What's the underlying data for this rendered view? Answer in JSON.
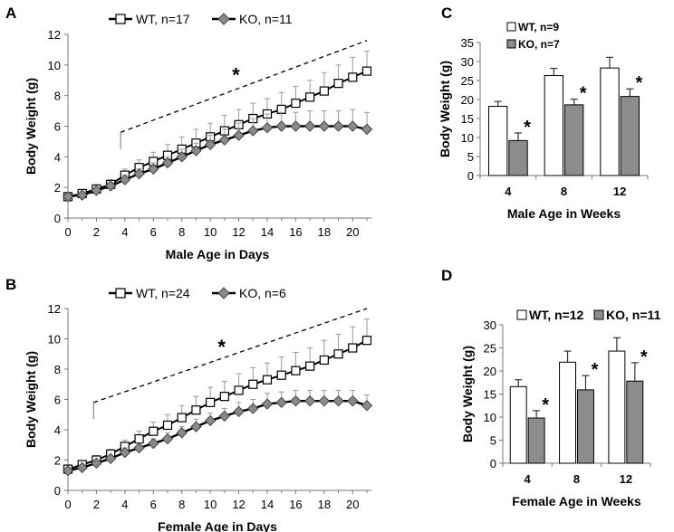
{
  "panels": [
    {
      "letter": "A",
      "type": "line",
      "xlabel": "Male Age in Days",
      "ylabel": "Body Weight (g)",
      "xlim": [
        0,
        21
      ],
      "ylim": [
        0,
        12
      ],
      "xticks": [
        0,
        2,
        4,
        6,
        8,
        10,
        12,
        14,
        16,
        18,
        20
      ],
      "yticks": [
        0,
        2,
        4,
        6,
        8,
        10,
        12
      ],
      "legend": [
        "WT, n=17",
        "KO, n=11"
      ],
      "star": "*",
      "bracket": {
        "x0": 3.7,
        "y0": 5.6,
        "x1": 21,
        "y1": 11.6
      },
      "star_pos": {
        "x": 11.8,
        "y": 9.5
      },
      "series": [
        {
          "name": "WT, n=17",
          "marker": "square",
          "x": [
            0,
            1,
            2,
            3,
            4,
            5,
            6,
            7,
            8,
            9,
            10,
            11,
            12,
            13,
            14,
            15,
            16,
            17,
            18,
            19,
            20,
            21
          ],
          "values": [
            1.4,
            1.6,
            1.9,
            2.2,
            2.8,
            3.3,
            3.7,
            4.1,
            4.5,
            4.9,
            5.3,
            5.7,
            6.1,
            6.5,
            6.8,
            7.1,
            7.5,
            7.9,
            8.3,
            8.8,
            9.2,
            9.6
          ],
          "errors": [
            0.2,
            0.2,
            0.2,
            0.3,
            0.4,
            0.5,
            0.6,
            0.7,
            0.8,
            0.9,
            0.9,
            1.0,
            1.0,
            1.0,
            1.0,
            1.1,
            1.1,
            1.1,
            1.2,
            1.2,
            1.3,
            1.3
          ]
        },
        {
          "name": "KO, n=11",
          "marker": "diamond",
          "x": [
            0,
            1,
            2,
            3,
            4,
            5,
            6,
            7,
            8,
            9,
            10,
            11,
            12,
            13,
            14,
            15,
            16,
            17,
            18,
            19,
            20,
            21
          ],
          "values": [
            1.4,
            1.5,
            1.8,
            2.1,
            2.5,
            2.9,
            3.2,
            3.6,
            4.0,
            4.4,
            4.8,
            5.1,
            5.4,
            5.7,
            5.9,
            6.0,
            6.0,
            6.0,
            6.0,
            6.0,
            6.0,
            5.8
          ],
          "errors": [
            0.2,
            0.2,
            0.2,
            0.2,
            0.3,
            0.3,
            0.4,
            0.4,
            0.5,
            0.5,
            0.6,
            0.7,
            0.8,
            0.8,
            0.9,
            0.9,
            0.9,
            1.0,
            1.0,
            1.0,
            1.1,
            1.1
          ]
        }
      ]
    },
    {
      "letter": "B",
      "type": "line",
      "xlabel": "Female Age in Days",
      "ylabel": "Body Weight (g)",
      "xlim": [
        0,
        21
      ],
      "ylim": [
        0,
        12
      ],
      "xticks": [
        0,
        2,
        4,
        6,
        8,
        10,
        12,
        14,
        16,
        18,
        20
      ],
      "yticks": [
        0,
        2,
        4,
        6,
        8,
        10,
        12
      ],
      "legend": [
        "WT, n=24",
        "KO, n=6"
      ],
      "star": "*",
      "bracket": {
        "x0": 1.8,
        "y0": 5.8,
        "x1": 21,
        "y1": 12.0
      },
      "star_pos": {
        "x": 10.8,
        "y": 9.6
      },
      "series": [
        {
          "name": "WT, n=24",
          "marker": "square",
          "x": [
            0,
            1,
            2,
            3,
            4,
            5,
            6,
            7,
            8,
            9,
            10,
            11,
            12,
            13,
            14,
            15,
            16,
            17,
            18,
            19,
            20,
            21
          ],
          "values": [
            1.4,
            1.7,
            2.0,
            2.4,
            2.9,
            3.4,
            3.9,
            4.3,
            4.8,
            5.3,
            5.8,
            6.2,
            6.6,
            7.0,
            7.3,
            7.6,
            7.9,
            8.2,
            8.6,
            9.0,
            9.4,
            9.9
          ],
          "errors": [
            0.2,
            0.2,
            0.3,
            0.3,
            0.4,
            0.5,
            0.6,
            0.7,
            0.8,
            0.9,
            1.0,
            1.0,
            1.1,
            1.1,
            1.1,
            1.2,
            1.2,
            1.2,
            1.3,
            1.3,
            1.4,
            1.4
          ]
        },
        {
          "name": "KO, n=6",
          "marker": "diamond",
          "x": [
            0,
            1,
            2,
            3,
            4,
            5,
            6,
            7,
            8,
            9,
            10,
            11,
            12,
            13,
            14,
            15,
            16,
            17,
            18,
            19,
            20,
            21
          ],
          "values": [
            1.3,
            1.5,
            1.8,
            2.1,
            2.5,
            2.8,
            3.1,
            3.4,
            3.8,
            4.2,
            4.6,
            4.9,
            5.2,
            5.4,
            5.7,
            5.8,
            5.9,
            5.9,
            5.9,
            5.9,
            5.9,
            5.6
          ],
          "errors": [
            0.2,
            0.2,
            0.2,
            0.2,
            0.3,
            0.3,
            0.3,
            0.4,
            0.4,
            0.5,
            0.5,
            0.5,
            0.6,
            0.6,
            0.7,
            0.7,
            0.7,
            0.7,
            0.7,
            0.7,
            0.7,
            0.7
          ]
        }
      ]
    },
    {
      "letter": "C",
      "type": "bar",
      "xlabel": "Male Age in Weeks",
      "ylabel": "Body Weight (g)",
      "categories": [
        "4",
        "8",
        "12"
      ],
      "ylim": [
        0,
        35
      ],
      "yticks": [
        0,
        5,
        10,
        15,
        20,
        25,
        30,
        35
      ],
      "legend": [
        "WT, n=9",
        "KO, n=7"
      ],
      "legend_layout": "stacked",
      "star": "*",
      "series": [
        {
          "name": "WT, n=9",
          "values": [
            18.2,
            26.3,
            28.3
          ],
          "errors": [
            1.3,
            1.9,
            2.8
          ]
        },
        {
          "name": "KO, n=7",
          "values": [
            9.2,
            18.6,
            20.8
          ],
          "errors": [
            2.0,
            1.5,
            2.0
          ]
        }
      ]
    },
    {
      "letter": "D",
      "type": "bar",
      "xlabel": "Female Age in Weeks",
      "ylabel": "Body Weight (g)",
      "categories": [
        "4",
        "8",
        "12"
      ],
      "ylim": [
        0,
        30
      ],
      "yticks": [
        0,
        5,
        10,
        15,
        20,
        25,
        30
      ],
      "legend": [
        "WT, n=12",
        "KO, n=11"
      ],
      "legend_layout": "inline",
      "star": "*",
      "series": [
        {
          "name": "WT, n=12",
          "values": [
            16.6,
            21.9,
            24.3
          ],
          "errors": [
            1.5,
            2.4,
            2.9
          ]
        },
        {
          "name": "KO, n=11",
          "values": [
            9.8,
            15.9,
            17.8
          ],
          "errors": [
            1.6,
            3.1,
            4.0
          ]
        }
      ]
    }
  ],
  "chart_data": [
    {
      "type": "line",
      "title": "A",
      "xlabel": "Male Age in Days",
      "ylabel": "Body Weight (g)",
      "ylim": [
        0,
        12
      ],
      "x": [
        0,
        1,
        2,
        3,
        4,
        5,
        6,
        7,
        8,
        9,
        10,
        11,
        12,
        13,
        14,
        15,
        16,
        17,
        18,
        19,
        20,
        21
      ],
      "series": [
        {
          "name": "WT, n=17",
          "values": [
            1.4,
            1.6,
            1.9,
            2.2,
            2.8,
            3.3,
            3.7,
            4.1,
            4.5,
            4.9,
            5.3,
            5.7,
            6.1,
            6.5,
            6.8,
            7.1,
            7.5,
            7.9,
            8.3,
            8.8,
            9.2,
            9.6
          ]
        },
        {
          "name": "KO, n=11",
          "values": [
            1.4,
            1.5,
            1.8,
            2.1,
            2.5,
            2.9,
            3.2,
            3.6,
            4.0,
            4.4,
            4.8,
            5.1,
            5.4,
            5.7,
            5.9,
            6.0,
            6.0,
            6.0,
            6.0,
            6.0,
            6.0,
            5.8
          ]
        }
      ]
    },
    {
      "type": "line",
      "title": "B",
      "xlabel": "Female Age in Days",
      "ylabel": "Body Weight (g)",
      "ylim": [
        0,
        12
      ],
      "x": [
        0,
        1,
        2,
        3,
        4,
        5,
        6,
        7,
        8,
        9,
        10,
        11,
        12,
        13,
        14,
        15,
        16,
        17,
        18,
        19,
        20,
        21
      ],
      "series": [
        {
          "name": "WT, n=24",
          "values": [
            1.4,
            1.7,
            2.0,
            2.4,
            2.9,
            3.4,
            3.9,
            4.3,
            4.8,
            5.3,
            5.8,
            6.2,
            6.6,
            7.0,
            7.3,
            7.6,
            7.9,
            8.2,
            8.6,
            9.0,
            9.4,
            9.9
          ]
        },
        {
          "name": "KO, n=6",
          "values": [
            1.3,
            1.5,
            1.8,
            2.1,
            2.5,
            2.8,
            3.1,
            3.4,
            3.8,
            4.2,
            4.6,
            4.9,
            5.2,
            5.4,
            5.7,
            5.8,
            5.9,
            5.9,
            5.9,
            5.9,
            5.9,
            5.6
          ]
        }
      ]
    },
    {
      "type": "bar",
      "title": "C",
      "xlabel": "Male Age in Weeks",
      "ylabel": "Body Weight (g)",
      "ylim": [
        0,
        35
      ],
      "categories": [
        "4",
        "8",
        "12"
      ],
      "series": [
        {
          "name": "WT, n=9",
          "values": [
            18.2,
            26.3,
            28.3
          ]
        },
        {
          "name": "KO, n=7",
          "values": [
            9.2,
            18.6,
            20.8
          ]
        }
      ]
    },
    {
      "type": "bar",
      "title": "D",
      "xlabel": "Female Age in Weeks",
      "ylabel": "Body Weight (g)",
      "ylim": [
        0,
        30
      ],
      "categories": [
        "4",
        "8",
        "12"
      ],
      "series": [
        {
          "name": "WT, n=12",
          "values": [
            16.6,
            21.9,
            24.3
          ]
        },
        {
          "name": "KO, n=11",
          "values": [
            9.8,
            15.9,
            17.8
          ]
        }
      ]
    }
  ]
}
